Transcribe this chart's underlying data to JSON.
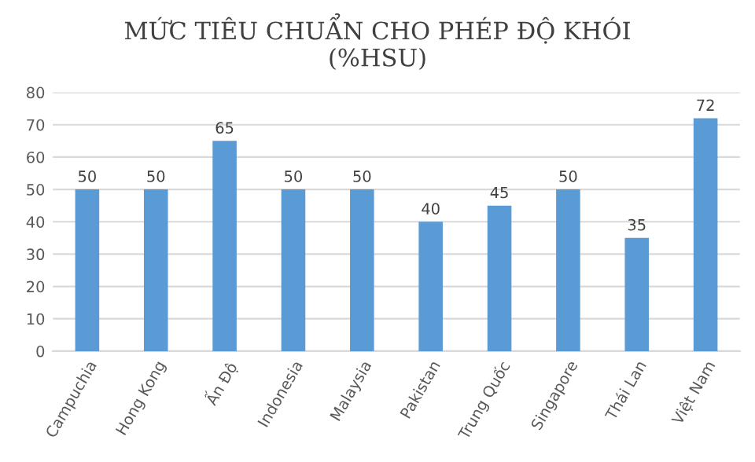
{
  "chart_data": {
    "type": "bar",
    "title": "MỨC TIÊU CHUẨN CHO PHÉP ĐỘ KHÓI\n(%HSU)",
    "categories": [
      "Campuchia",
      "Hong Kong",
      "Ấn Độ",
      "Indonesia",
      "Malaysia",
      "Pakistan",
      "Trung Quốc",
      "Singapore",
      "Thái Lan",
      "Việt Nam"
    ],
    "values": [
      50,
      50,
      65,
      50,
      50,
      40,
      45,
      50,
      35,
      72
    ],
    "color": "#5b9bd5",
    "ylim": [
      0,
      80
    ],
    "yticks": [
      0,
      10,
      20,
      30,
      40,
      50,
      60,
      70,
      80
    ],
    "grid": "y",
    "data_labels": true
  }
}
